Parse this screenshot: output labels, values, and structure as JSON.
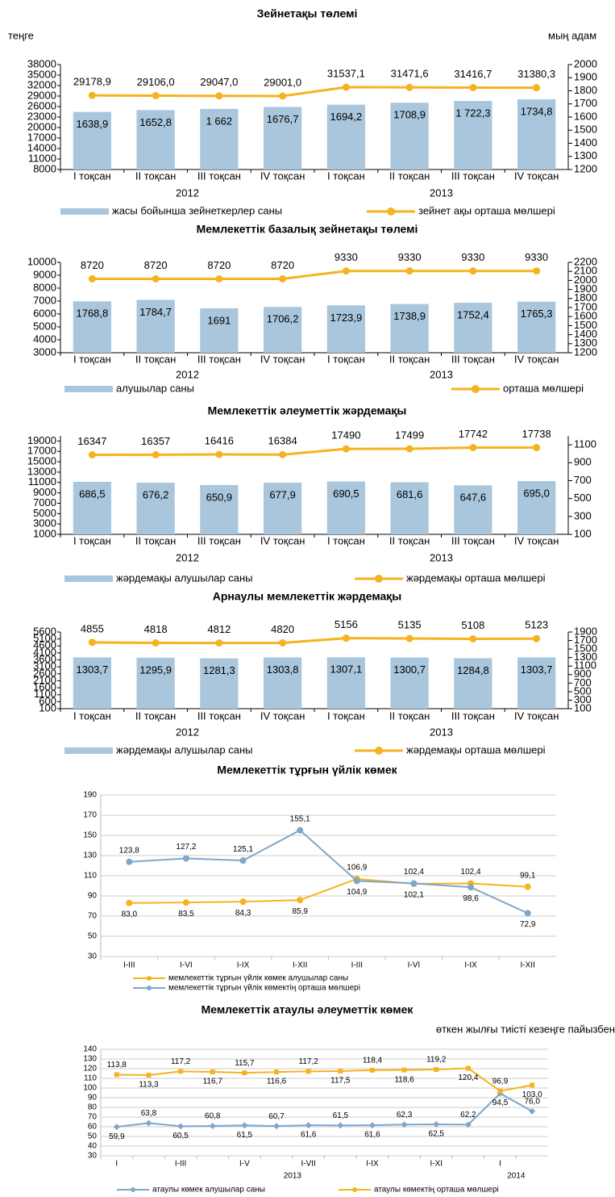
{
  "chart_data": [
    {
      "type": "combo",
      "title": "Зейнетақы төлемі",
      "y_label": "теңге",
      "y2_label": "мың адам",
      "categories": [
        "I тоқсан",
        "II тоқсан",
        "III тоқсан",
        "IV тоқсан",
        "I тоқсан",
        "II тоқсан",
        "III тоқсан",
        "IV тоқсан"
      ],
      "groups": [
        "2012",
        "2013"
      ],
      "ylim": [
        8000,
        38000
      ],
      "yticks": [
        8000,
        11000,
        14000,
        17000,
        20000,
        23000,
        26000,
        29000,
        32000,
        35000,
        38000
      ],
      "y2lim": [
        1200,
        2000
      ],
      "y2ticks": [
        1200,
        1300,
        1400,
        1500,
        1600,
        1700,
        1800,
        1900,
        2000
      ],
      "series": [
        {
          "name": "жасы бойынша зейнеткерлер саны",
          "color": "#a9c6dc",
          "type": "bar",
          "axis": "y2",
          "values": [
            1638.9,
            1652.8,
            1662,
            1676.7,
            1694.2,
            1708.9,
            1722.3,
            1734.8
          ],
          "value_labels": [
            "1638,9",
            "1652,8",
            "1 662",
            "1676,7",
            "1694,2",
            "1708,9",
            "1 722,3",
            "1734,8"
          ]
        },
        {
          "name": "зейнет ақы орташа мөлшері",
          "color": "#f5b320",
          "type": "line",
          "values": [
            29178.9,
            29106.0,
            29047.0,
            29001.0,
            31537.1,
            31471.6,
            31416.7,
            31380.3
          ],
          "value_labels": [
            "29178,9",
            "29106,0",
            "29047,0",
            "29001,0",
            "31537,1",
            "31471,6",
            "31416,7",
            "31380,3"
          ]
        }
      ]
    },
    {
      "type": "combo",
      "title": "Мемлекеттік базалық зейнетақы төлемі",
      "categories": [
        "I тоқсан",
        "II тоқсан",
        "III тоқсан",
        "IV тоқсан",
        "I тоқсан",
        "II тоқсан",
        "III тоқсан",
        "IV тоқсан"
      ],
      "groups": [
        "2012",
        "2013"
      ],
      "ylim": [
        3000,
        10000
      ],
      "yticks": [
        3000,
        4000,
        5000,
        6000,
        7000,
        8000,
        9000,
        10000
      ],
      "y2lim": [
        1200,
        2200
      ],
      "y2ticks": [
        1200,
        1300,
        1400,
        1500,
        1600,
        1700,
        1800,
        1900,
        2000,
        2100,
        2200
      ],
      "series": [
        {
          "name": "алушылар саны",
          "color": "#a9c6dc",
          "type": "bar",
          "axis": "y2",
          "values": [
            1768.8,
            1784.7,
            1691,
            1706.2,
            1723.9,
            1738.9,
            1752.4,
            1765.3
          ],
          "value_labels": [
            "1768,8",
            "1784,7",
            "1691",
            "1706,2",
            "1723,9",
            "1738,9",
            "1752,4",
            "1765,3"
          ]
        },
        {
          "name": "орташа мөлшері",
          "color": "#f5b320",
          "type": "line",
          "values": [
            8720,
            8720,
            8720,
            8720,
            9330,
            9330,
            9330,
            9330
          ]
        }
      ]
    },
    {
      "type": "combo",
      "title": "Мемлекеттік әлеуметтік жәрдемақы",
      "categories": [
        "I тоқсан",
        "II тоқсан",
        "III тоқсан",
        "IV тоқсан",
        "I тоқсан",
        "II тоқсан",
        "III тоқсан",
        "IV тоқсан"
      ],
      "groups": [
        "2012",
        "2013"
      ],
      "ylim": [
        1000,
        20000
      ],
      "yticks": [
        1000,
        3000,
        5000,
        7000,
        9000,
        11000,
        13000,
        15000,
        17000,
        19000
      ],
      "y2lim": [
        100,
        1200
      ],
      "y2ticks": [
        100,
        300,
        500,
        700,
        900,
        1100
      ],
      "series": [
        {
          "name": "жәрдемақы алушылар саны",
          "color": "#a9c6dc",
          "type": "bar",
          "axis": "y2",
          "values": [
            686.5,
            676.2,
            650.9,
            677.9,
            690.5,
            681.6,
            647.6,
            695.0
          ],
          "value_labels": [
            "686,5",
            "676,2",
            "650,9",
            "677,9",
            "690,5",
            "681,6",
            "647,6",
            "695,0"
          ]
        },
        {
          "name": "жәрдемақы орташа мөлшері",
          "color": "#f5b320",
          "type": "line",
          "values": [
            16347,
            16357,
            16416,
            16384,
            17490,
            17499,
            17742,
            17738
          ]
        }
      ]
    },
    {
      "type": "combo",
      "title": "Арнаулы мемлекеттік жәрдемақы",
      "categories": [
        "I тоқсан",
        "II тоқсан",
        "III тоқсан",
        "IV тоқсан",
        "I тоқсан",
        "II тоқсан",
        "III тоқсан",
        "IV тоқсан"
      ],
      "groups": [
        "2012",
        "2013"
      ],
      "ylim": [
        100,
        5600
      ],
      "yticks": [
        100,
        600,
        1100,
        1600,
        2100,
        2600,
        3100,
        3600,
        4100,
        4600,
        5100,
        5600
      ],
      "y2lim": [
        100,
        1900
      ],
      "y2ticks": [
        100,
        300,
        500,
        700,
        900,
        1100,
        1300,
        1500,
        1700,
        1900
      ],
      "series": [
        {
          "name": "жәрдемақы алушылар саны",
          "color": "#a9c6dc",
          "type": "bar",
          "axis": "y2",
          "values": [
            1303.7,
            1295.9,
            1281.3,
            1303.8,
            1307.1,
            1300.7,
            1284.8,
            1303.7
          ],
          "value_labels": [
            "1303,7",
            "1295,9",
            "1281,3",
            "1303,8",
            "1307,1",
            "1300,7",
            "1284,8",
            "1303,7"
          ]
        },
        {
          "name": "жәрдемақы орташа мөлшері",
          "color": "#f5b320",
          "type": "line",
          "values": [
            4855,
            4818,
            4812,
            4820,
            5156,
            5135,
            5108,
            5123
          ]
        }
      ]
    },
    {
      "type": "line",
      "title": "Мемлекеттік тұрғын үйлік көмек",
      "categories": [
        "I-III",
        "I-VI",
        "I-IX",
        "I-XII",
        "I-III",
        "I-VI",
        "I-IX",
        "I-XII"
      ],
      "ylim": [
        30,
        190
      ],
      "yticks": [
        30,
        50,
        70,
        90,
        110,
        130,
        150,
        170,
        190
      ],
      "grid": true,
      "series": [
        {
          "name": "мемлекеттік тұрғын үйлік көмек алушылар саны",
          "color": "#f5b320",
          "marker": "circle",
          "values": [
            83.0,
            83.5,
            84.3,
            85.9,
            106.9,
            102.1,
            102.4,
            99.1
          ],
          "value_labels": [
            "83,0",
            "83,5",
            "84,3",
            "85,9",
            "106,9",
            "102,1",
            "102,4",
            "99,1"
          ]
        },
        {
          "name": "мемлекеттік тұрғын үйлік көмектің орташа мөлшері",
          "color": "#7fa7c9",
          "marker": "circle",
          "values": [
            123.8,
            127.2,
            125.1,
            155.1,
            104.9,
            102.4,
            98.6,
            72.9
          ],
          "value_labels": [
            "123,8",
            "127,2",
            "125,1",
            "155,1",
            "104,9",
            "102,4",
            "98,6",
            "72,9"
          ]
        }
      ]
    },
    {
      "type": "line",
      "title": "Мемлекеттік атаулы әлеуметтік көмек",
      "subtitle": "өткен жылғы тиісті кезеңге пайызбен",
      "categories": [
        "I",
        null,
        "I-III",
        null,
        "I-V",
        null,
        "I-VII",
        null,
        "I-IX",
        null,
        "I-XI",
        null,
        "I",
        null
      ],
      "groups": [
        "2013",
        "2014"
      ],
      "ylim": [
        30,
        140
      ],
      "yticks": [
        30,
        40,
        50,
        60,
        70,
        80,
        90,
        100,
        110,
        120,
        130,
        140
      ],
      "grid": true,
      "series": [
        {
          "name": "атаулы көмек алушылар саны",
          "color": "#7fa7c9",
          "marker": "diamond",
          "values": [
            59.9,
            63.8,
            60.5,
            60.8,
            61.5,
            60.7,
            61.6,
            61.5,
            61.6,
            62.3,
            62.5,
            62.2,
            94.5,
            76.0
          ],
          "value_labels": [
            "59,9",
            "63,8",
            "60,5",
            "60,8",
            "61,5",
            "60,7",
            "61,6",
            "61,5",
            "61,6",
            "62,3",
            "62,5",
            "62,2",
            "94,5",
            "76,0"
          ]
        },
        {
          "name": "атаулы көмектің орташа мөлшері",
          "color": "#f5b320",
          "marker": "square",
          "values": [
            113.8,
            113.3,
            117.2,
            116.7,
            115.7,
            116.6,
            117.2,
            117.5,
            118.4,
            118.6,
            119.2,
            120.4,
            96.9,
            103.0
          ],
          "value_labels": [
            "113,8",
            "113,3",
            "117,2",
            "116,7",
            "115,7",
            "116,6",
            "117,2",
            "117,5",
            "118,4",
            "118,6",
            "119,2",
            "120,4",
            "96,9",
            "103,0"
          ]
        }
      ]
    }
  ]
}
